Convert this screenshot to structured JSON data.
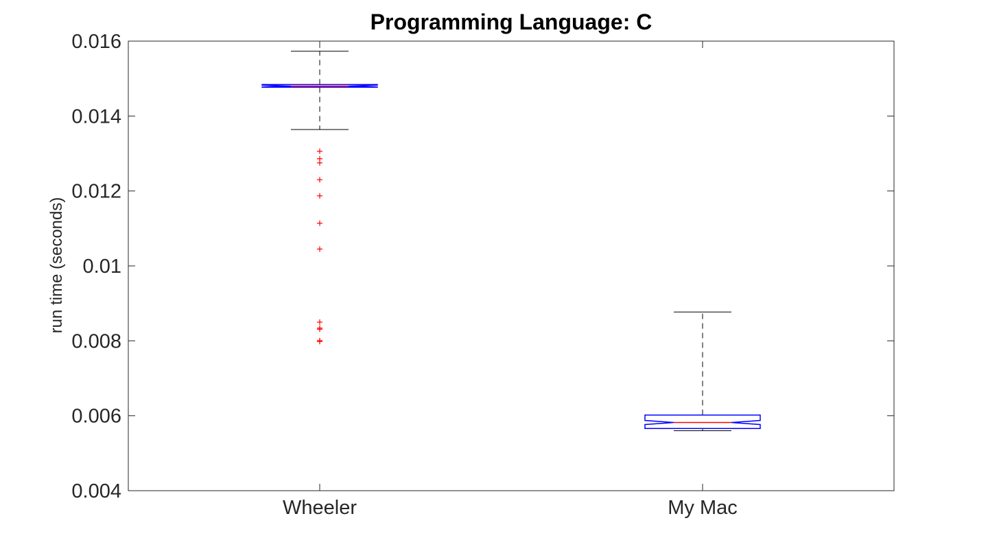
{
  "chart_data": {
    "type": "boxplot",
    "title": "Programming Language: C",
    "xlabel": "",
    "ylabel": "run time (seconds)",
    "ylim": [
      0.004,
      0.016
    ],
    "yticks": [
      "0.004",
      "0.006",
      "0.008",
      "0.01",
      "0.012",
      "0.014",
      "0.016"
    ],
    "categories": [
      "Wheeler",
      "My Mac"
    ],
    "notched": true,
    "boxes": [
      {
        "name": "Wheeler",
        "whisker_low": 0.01364,
        "q1": 0.01477,
        "median": 0.0148,
        "q3": 0.01484,
        "whisker_high": 0.01573,
        "outliers": [
          0.01306,
          0.01286,
          0.01275,
          0.0123,
          0.01187,
          0.01114,
          0.01045,
          0.0085,
          0.00834,
          0.00831,
          0.00801,
          0.00798
        ]
      },
      {
        "name": "My Mac",
        "whisker_low": 0.0056,
        "q1": 0.00566,
        "median": 0.00582,
        "q3": 0.00602,
        "whisker_high": 0.00877,
        "outliers": []
      }
    ],
    "colors": {
      "box": "#0000ff",
      "median": "#ff0000",
      "whisker": "#000000",
      "outlier": "#ff0000",
      "axis": "#262626"
    }
  }
}
